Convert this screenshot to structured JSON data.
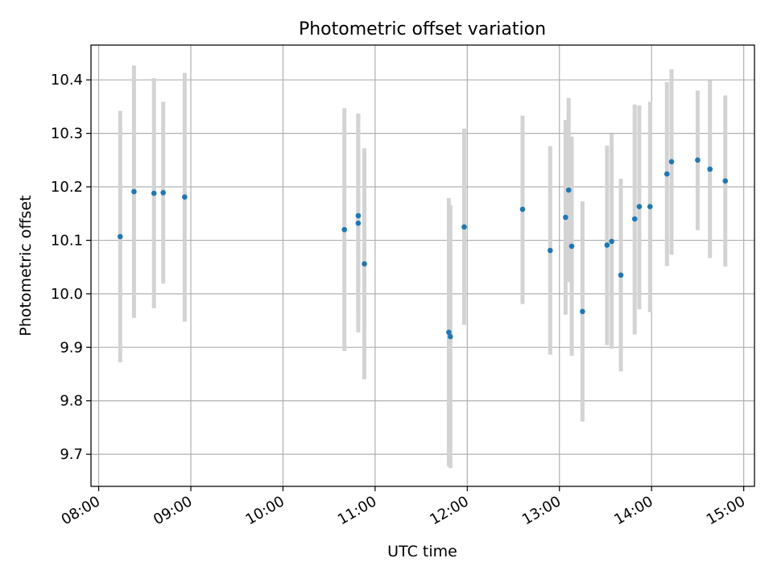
{
  "chart_data": {
    "type": "scatter",
    "title": "Photometric offset variation",
    "xlabel": "UTC time",
    "ylabel": "Photometric offset",
    "xlim": [
      "07:55",
      "15:07"
    ],
    "ylim": [
      9.64,
      10.465
    ],
    "x_ticks": [
      "08:00",
      "09:00",
      "10:00",
      "11:00",
      "12:00",
      "13:00",
      "14:00",
      "15:00"
    ],
    "y_ticks": [
      9.7,
      9.8,
      9.9,
      10.0,
      10.1,
      10.2,
      10.3,
      10.4
    ],
    "y_tick_labels": [
      "9.7",
      "9.8",
      "9.9",
      "10.0",
      "10.1",
      "10.2",
      "10.3",
      "10.4"
    ],
    "grid": true,
    "legend": "none",
    "marker_color": "#1f77b4",
    "errorbar_color": "#d3d3d3",
    "series": [
      {
        "points": [
          {
            "x": "08:14",
            "y": 10.107,
            "err_low": 9.872,
            "err_high": 10.342
          },
          {
            "x": "08:23",
            "y": 10.191,
            "err_low": 9.955,
            "err_high": 10.427
          },
          {
            "x": "08:36",
            "y": 10.188,
            "err_low": 9.973,
            "err_high": 10.403
          },
          {
            "x": "08:42",
            "y": 10.189,
            "err_low": 10.019,
            "err_high": 10.359
          },
          {
            "x": "08:56",
            "y": 10.181,
            "err_low": 9.948,
            "err_high": 10.413
          },
          {
            "x": "10:40",
            "y": 10.12,
            "err_low": 9.893,
            "err_high": 10.347
          },
          {
            "x": "10:49",
            "y": 10.146,
            "err_low": 9.955,
            "err_high": 10.337
          },
          {
            "x": "10:49",
            "y": 10.132,
            "err_low": 9.928,
            "err_high": 10.336
          },
          {
            "x": "10:53",
            "y": 10.056,
            "err_low": 9.84,
            "err_high": 10.272
          },
          {
            "x": "11:48",
            "y": 9.928,
            "err_low": 9.677,
            "err_high": 10.179
          },
          {
            "x": "11:49",
            "y": 9.92,
            "err_low": 9.674,
            "err_high": 10.166
          },
          {
            "x": "11:58",
            "y": 10.125,
            "err_low": 9.942,
            "err_high": 10.309
          },
          {
            "x": "12:36",
            "y": 10.158,
            "err_low": 9.981,
            "err_high": 10.333
          },
          {
            "x": "12:54",
            "y": 10.081,
            "err_low": 9.886,
            "err_high": 10.276
          },
          {
            "x": "13:04",
            "y": 10.143,
            "err_low": 9.961,
            "err_high": 10.325
          },
          {
            "x": "13:06",
            "y": 10.194,
            "err_low": 10.022,
            "err_high": 10.366
          },
          {
            "x": "13:08",
            "y": 10.089,
            "err_low": 9.884,
            "err_high": 10.294
          },
          {
            "x": "13:15",
            "y": 9.967,
            "err_low": 9.761,
            "err_high": 10.173
          },
          {
            "x": "13:31",
            "y": 10.091,
            "err_low": 9.904,
            "err_high": 10.277
          },
          {
            "x": "13:34",
            "y": 10.098,
            "err_low": 9.897,
            "err_high": 10.299
          },
          {
            "x": "13:40",
            "y": 10.035,
            "err_low": 9.855,
            "err_high": 10.215
          },
          {
            "x": "13:49",
            "y": 10.14,
            "err_low": 9.924,
            "err_high": 10.354
          },
          {
            "x": "13:52",
            "y": 10.163,
            "err_low": 9.971,
            "err_high": 10.352
          },
          {
            "x": "13:59",
            "y": 10.163,
            "err_low": 9.966,
            "err_high": 10.359
          },
          {
            "x": "14:10",
            "y": 10.224,
            "err_low": 10.052,
            "err_high": 10.396
          },
          {
            "x": "14:13",
            "y": 10.247,
            "err_low": 10.073,
            "err_high": 10.42
          },
          {
            "x": "14:30",
            "y": 10.25,
            "err_low": 10.119,
            "err_high": 10.38
          },
          {
            "x": "14:38",
            "y": 10.233,
            "err_low": 10.067,
            "err_high": 10.399
          },
          {
            "x": "14:48",
            "y": 10.211,
            "err_low": 10.051,
            "err_high": 10.371
          }
        ]
      }
    ]
  }
}
